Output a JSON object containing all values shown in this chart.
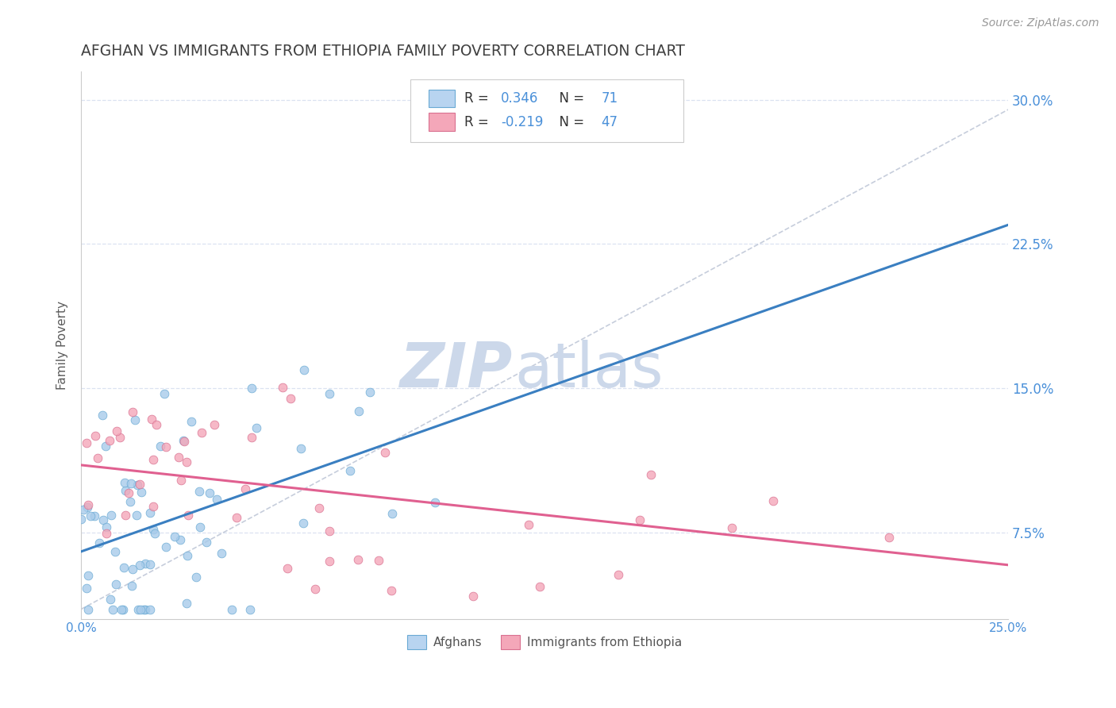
{
  "title": "AFGHAN VS IMMIGRANTS FROM ETHIOPIA FAMILY POVERTY CORRELATION CHART",
  "source": "Source: ZipAtlas.com",
  "ylabel": "Family Poverty",
  "xlim": [
    0.0,
    0.25
  ],
  "ylim": [
    0.03,
    0.315
  ],
  "yticks": [
    0.075,
    0.15,
    0.225,
    0.3
  ],
  "ytick_labels": [
    "7.5%",
    "15.0%",
    "22.5%",
    "30.0%"
  ],
  "xticks": [
    0.0,
    0.05,
    0.1,
    0.15,
    0.2,
    0.25
  ],
  "xtick_labels": [
    "0.0%",
    "",
    "",
    "",
    "",
    "25.0%"
  ],
  "series1_name": "Afghans",
  "series1_R": 0.346,
  "series1_N": 71,
  "series1_scatter_color": "#a8cbea",
  "series1_edge_color": "#6aaad4",
  "series1_line_color": "#3a7fc1",
  "series2_name": "Immigrants from Ethiopia",
  "series2_R": -0.219,
  "series2_N": 47,
  "series2_scatter_color": "#f4a7b9",
  "series2_edge_color": "#d97090",
  "series2_line_color": "#e06090",
  "legend_box_color1": "#b8d4f0",
  "legend_box_color2": "#f4a7b9",
  "title_color": "#404040",
  "axis_label_color": "#5a5a5a",
  "tick_label_color": "#4a90d9",
  "grid_color": "#d8dff0",
  "diag_color": "#c0c8d8",
  "background_color": "#ffffff",
  "watermark_zip": "ZIP",
  "watermark_atlas": "atlas",
  "watermark_color": "#ccd8ea",
  "legend_r1": "0.346",
  "legend_r2": "-0.219",
  "legend_n1": "71",
  "legend_n2": "47",
  "blue_line_start_y": 0.065,
  "blue_line_end_y": 0.235,
  "pink_line_start_y": 0.11,
  "pink_line_end_y": 0.058
}
